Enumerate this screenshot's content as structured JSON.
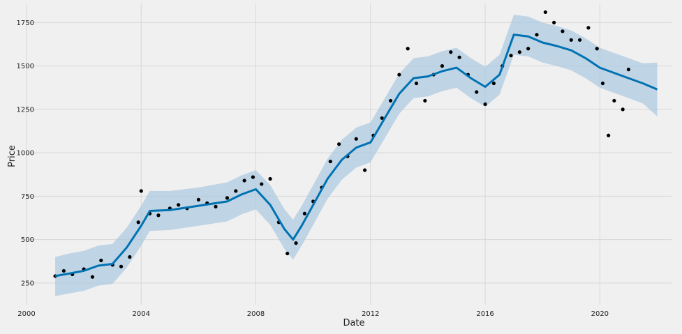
{
  "chart_data": {
    "type": "line",
    "title": "",
    "xlabel": "Date",
    "ylabel": "Price",
    "xlim": [
      2000.0,
      2022.5
    ],
    "ylim": [
      125,
      1860
    ],
    "x_ticks": [
      2000,
      2004,
      2008,
      2012,
      2016,
      2020
    ],
    "x_tick_labels": [
      "2000",
      "2004",
      "2008",
      "2012",
      "2016",
      "2020"
    ],
    "y_ticks": [
      250,
      500,
      750,
      1000,
      1250,
      1500,
      1750
    ],
    "y_tick_labels": [
      "250",
      "500",
      "750",
      "1000",
      "1250",
      "1500",
      "1750"
    ],
    "grid": true,
    "legend": "none",
    "colors": {
      "background": "#f0f0f0",
      "grid": "#d7d7d7",
      "forecast_line": "#0072b2",
      "uncertainty_band": "#a9c7df",
      "observed_points": "#000000"
    },
    "series": [
      {
        "kind": "forecast",
        "x": [
          2001.0,
          2001.5,
          2002.0,
          2002.5,
          2003.0,
          2003.5,
          2004.0,
          2004.3,
          2005.0,
          2006.0,
          2007.0,
          2007.5,
          2008.0,
          2008.5,
          2009.0,
          2009.3,
          2009.6,
          2010.0,
          2010.5,
          2011.0,
          2011.5,
          2012.0,
          2012.5,
          2013.0,
          2013.5,
          2014.0,
          2014.5,
          2015.0,
          2015.5,
          2016.0,
          2016.5,
          2017.0,
          2017.5,
          2018.0,
          2018.5,
          2019.0,
          2019.5,
          2020.0,
          2020.5,
          2021.0,
          2021.5,
          2022.0
        ],
        "y": [
          290,
          305,
          320,
          350,
          360,
          455,
          580,
          665,
          670,
          695,
          720,
          760,
          790,
          700,
          560,
          500,
          580,
          700,
          850,
          960,
          1030,
          1060,
          1200,
          1340,
          1430,
          1440,
          1470,
          1490,
          1430,
          1380,
          1450,
          1680,
          1670,
          1635,
          1615,
          1590,
          1545,
          1490,
          1460,
          1430,
          1400,
          1365
        ]
      },
      {
        "kind": "band_upper",
        "x": [
          2001.0,
          2001.5,
          2002.0,
          2002.5,
          2003.0,
          2003.5,
          2004.0,
          2004.3,
          2005.0,
          2006.0,
          2007.0,
          2007.5,
          2008.0,
          2008.5,
          2009.0,
          2009.3,
          2009.6,
          2010.0,
          2010.5,
          2011.0,
          2011.5,
          2012.0,
          2012.5,
          2013.0,
          2013.5,
          2014.0,
          2014.5,
          2015.0,
          2015.5,
          2016.0,
          2016.5,
          2017.0,
          2017.5,
          2018.0,
          2018.5,
          2019.0,
          2019.5,
          2020.0,
          2020.5,
          2021.0,
          2021.5,
          2022.0
        ],
        "y": [
          400,
          420,
          435,
          465,
          475,
          570,
          695,
          780,
          780,
          800,
          830,
          870,
          900,
          815,
          675,
          615,
          695,
          815,
          965,
          1075,
          1145,
          1175,
          1315,
          1455,
          1545,
          1555,
          1585,
          1605,
          1545,
          1495,
          1565,
          1795,
          1785,
          1750,
          1730,
          1705,
          1660,
          1605,
          1575,
          1545,
          1515,
          1520
        ]
      },
      {
        "kind": "band_lower",
        "x": [
          2001.0,
          2001.5,
          2002.0,
          2002.5,
          2003.0,
          2003.5,
          2004.0,
          2004.3,
          2005.0,
          2006.0,
          2007.0,
          2007.5,
          2008.0,
          2008.5,
          2009.0,
          2009.3,
          2009.6,
          2010.0,
          2010.5,
          2011.0,
          2011.5,
          2012.0,
          2012.5,
          2013.0,
          2013.5,
          2014.0,
          2014.5,
          2015.0,
          2015.5,
          2016.0,
          2016.5,
          2017.0,
          2017.5,
          2018.0,
          2018.5,
          2019.0,
          2019.5,
          2020.0,
          2020.5,
          2021.0,
          2021.5,
          2022.0
        ],
        "y": [
          175,
          190,
          205,
          235,
          245,
          340,
          465,
          550,
          555,
          580,
          605,
          645,
          675,
          585,
          445,
          385,
          465,
          585,
          735,
          845,
          915,
          945,
          1085,
          1225,
          1315,
          1325,
          1355,
          1375,
          1315,
          1265,
          1335,
          1565,
          1555,
          1520,
          1500,
          1475,
          1430,
          1375,
          1345,
          1315,
          1285,
          1210
        ]
      },
      {
        "kind": "observed",
        "x": [
          2001.0,
          2001.3,
          2001.6,
          2002.0,
          2002.3,
          2002.6,
          2003.0,
          2003.3,
          2003.6,
          2003.9,
          2004.0,
          2004.3,
          2004.6,
          2005.0,
          2005.3,
          2005.6,
          2006.0,
          2006.3,
          2006.6,
          2007.0,
          2007.3,
          2007.6,
          2007.9,
          2008.2,
          2008.5,
          2008.8,
          2009.1,
          2009.4,
          2009.7,
          2010.0,
          2010.3,
          2010.6,
          2010.9,
          2011.2,
          2011.5,
          2011.8,
          2012.1,
          2012.4,
          2012.7,
          2013.0,
          2013.3,
          2013.6,
          2013.9,
          2014.2,
          2014.5,
          2014.8,
          2015.1,
          2015.4,
          2015.7,
          2016.0,
          2016.3,
          2016.6,
          2016.9,
          2017.2,
          2017.5,
          2017.8,
          2018.1,
          2018.4,
          2018.7,
          2019.0,
          2019.3,
          2019.6,
          2019.9,
          2020.1,
          2020.3,
          2020.5,
          2020.8,
          2021.0
        ],
        "y": [
          290,
          320,
          300,
          330,
          285,
          380,
          355,
          345,
          400,
          600,
          780,
          650,
          640,
          680,
          700,
          680,
          730,
          710,
          690,
          740,
          780,
          840,
          860,
          820,
          850,
          600,
          420,
          480,
          650,
          720,
          800,
          950,
          1050,
          980,
          1080,
          900,
          1100,
          1200,
          1300,
          1450,
          1600,
          1400,
          1300,
          1450,
          1500,
          1580,
          1550,
          1450,
          1350,
          1280,
          1400,
          1500,
          1560,
          1580,
          1600,
          1680,
          1810,
          1750,
          1700,
          1650,
          1650,
          1720,
          1600,
          1400,
          1100,
          1300,
          1250,
          1480
        ]
      }
    ]
  }
}
